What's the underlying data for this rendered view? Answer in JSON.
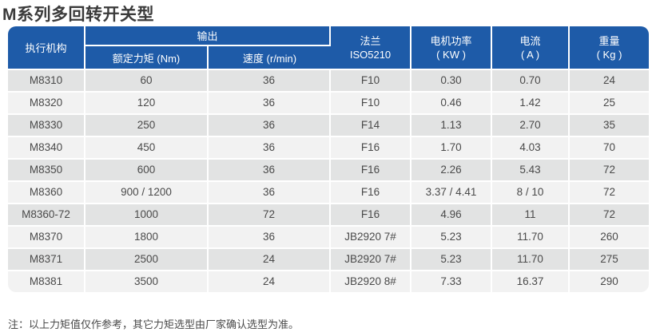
{
  "page": {
    "title": "M系列多回转开关型",
    "note": "注：以上力矩值仅作参考，其它力矩选型由厂家确认选型为准。"
  },
  "colors": {
    "header_bg": "#1e5ba8",
    "header_text": "#ffffff",
    "row_dark_bg": "#e2e3e3",
    "row_light_bg": "#f2f2f2",
    "body_text": "#4a4a4a",
    "title_text": "#3a3a3a"
  },
  "table": {
    "column_keys": [
      "actuator",
      "torque",
      "speed",
      "flange",
      "power",
      "current",
      "weight"
    ],
    "headers": {
      "actuator": "执行机构",
      "output_group": "输出",
      "torque": "额定力矩 (Nm)",
      "speed": "速度 (r/min)",
      "flange_line1": "法兰",
      "flange_line2": "ISO5210",
      "power_line1": "电机功率",
      "power_line2": "( KW )",
      "current_line1": "电流",
      "current_line2": "( A )",
      "weight_line1": "重量",
      "weight_line2": "( Kg )"
    },
    "rows": [
      [
        "M8310",
        "60",
        "36",
        "F10",
        "0.30",
        "0.70",
        "24"
      ],
      [
        "M8320",
        "120",
        "36",
        "F10",
        "0.46",
        "1.42",
        "25"
      ],
      [
        "M8330",
        "250",
        "36",
        "F14",
        "1.13",
        "2.70",
        "35"
      ],
      [
        "M8340",
        "450",
        "36",
        "F16",
        "1.70",
        "4.03",
        "70"
      ],
      [
        "M8350",
        "600",
        "36",
        "F16",
        "2.26",
        "5.43",
        "72"
      ],
      [
        "M8360",
        "900 / 1200",
        "36",
        "F16",
        "3.37 / 4.41",
        "8 / 10",
        "72"
      ],
      [
        "M8360-72",
        "1000",
        "72",
        "F16",
        "4.96",
        "11",
        "72"
      ],
      [
        "M8370",
        "1800",
        "36",
        "JB2920 7#",
        "5.23",
        "11.70",
        "260"
      ],
      [
        "M8371",
        "2500",
        "24",
        "JB2920 7#",
        "5.23",
        "11.70",
        "275"
      ],
      [
        "M8381",
        "3500",
        "24",
        "JB2920 8#",
        "7.33",
        "16.37",
        "290"
      ]
    ]
  }
}
